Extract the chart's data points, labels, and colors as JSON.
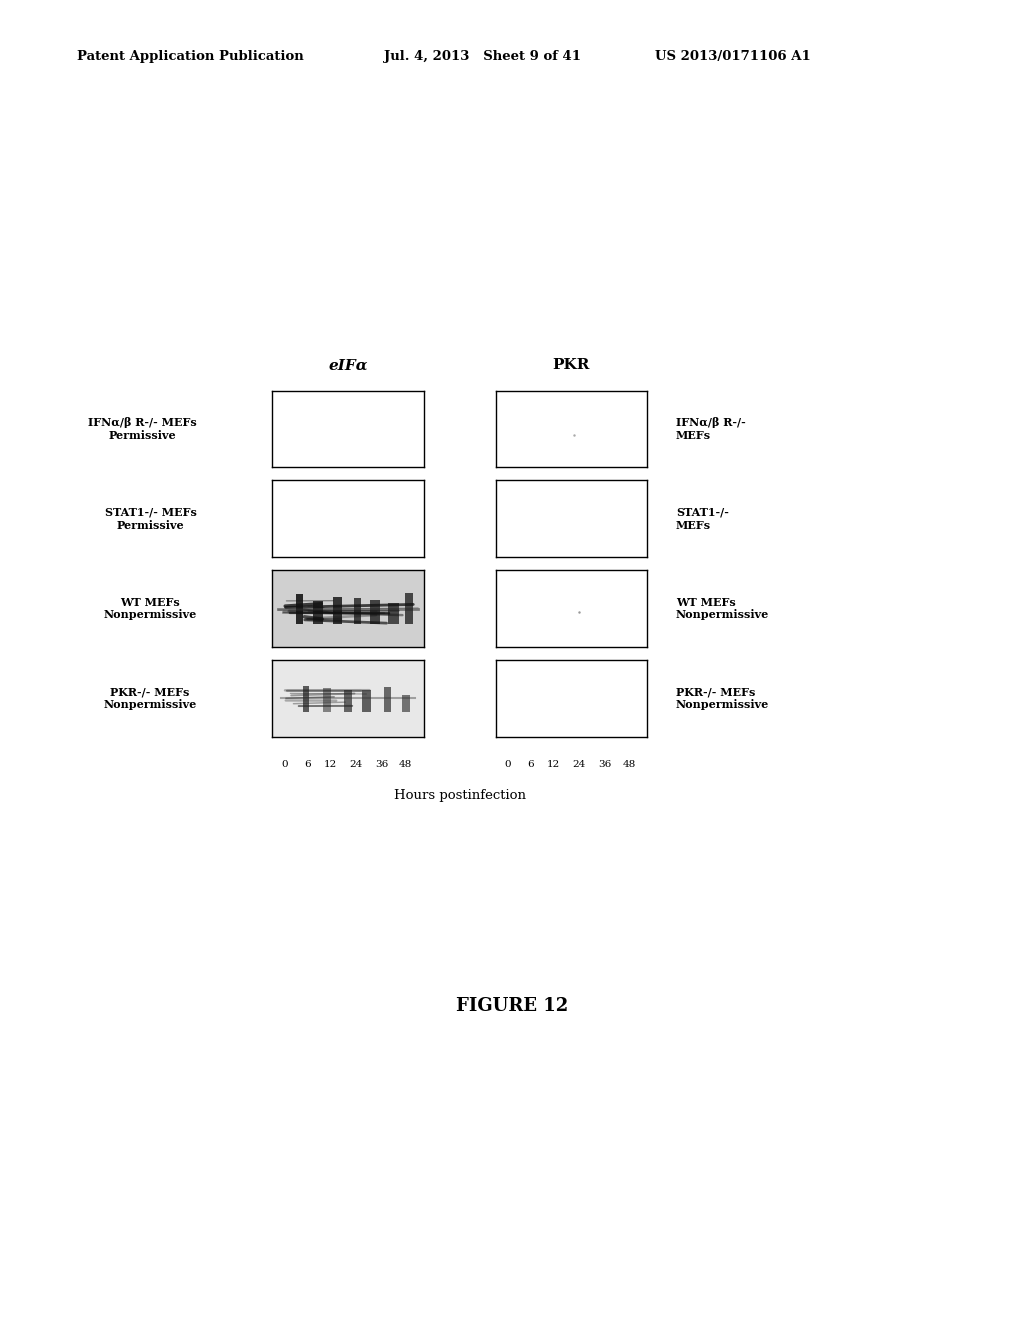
{
  "title": "FIGURE 12",
  "header_left": "Patent Application Publication",
  "header_mid": "Jul. 4, 2013   Sheet 9 of 41",
  "header_right": "US 2013/0171106 A1",
  "col_labels": [
    "eIFα",
    "PKR"
  ],
  "row_labels_left": [
    "IFNα/β R-/- MEFs\nPermissive",
    "STAT1-/- MEFs\nPermissive",
    "WT MEFs\nNonpermissive",
    "PKR-/- MEFs\nNonpermissive"
  ],
  "row_labels_right": [
    "IFNα/β R-/-\nMEFs",
    "STAT1-/-\nMEFs",
    "WT MEFs\nNonpermissive",
    "PKR-/- MEFs\nNonpermissive"
  ],
  "xlabel": "Hours postinfection",
  "xtick_labels": [
    "0",
    "6",
    "12",
    "24",
    "36",
    "48"
  ],
  "bg_color": "#ffffff",
  "figure_width": 10.24,
  "figure_height": 13.2
}
